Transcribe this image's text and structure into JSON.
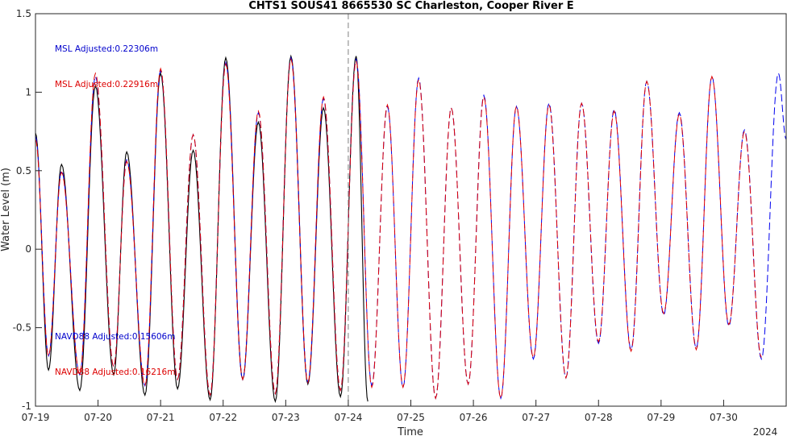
{
  "chart_data": {
    "type": "line",
    "title": "CHTS1 SOUS41 8665530 SC Charleston, Cooper River E",
    "xlabel": "Time",
    "ylabel": "Water Level (m)",
    "year_label": "2024",
    "xlim": [
      "2024-07-19T00:00",
      "2024-07-31T00:00"
    ],
    "ylim": [
      -1,
      1.5
    ],
    "x_ticks": [
      "07-19",
      "07-20",
      "07-21",
      "07-22",
      "07-23",
      "07-24",
      "07-25",
      "07-26",
      "07-27",
      "07-28",
      "07-29",
      "07-30"
    ],
    "y_ticks": [
      "-1",
      "-0.5",
      "0",
      "0.5",
      "1",
      "1.5"
    ],
    "y_tick_values": [
      -1,
      -0.5,
      0,
      0.5,
      1,
      1.5
    ],
    "grid": false,
    "legend": "none",
    "now_marker": "2024-07-24T00:00",
    "annotations": [
      {
        "text": "MSL Adjusted:0.22306m",
        "color": "#0000cc"
      },
      {
        "text": "MSL Adjusted:0.22916m",
        "color": "#dd0000"
      },
      {
        "text": "NAVD88 Adjusted:0.15606m",
        "color": "#0000cc"
      },
      {
        "text": "NAVD88 Adjusted:0.16216m",
        "color": "#dd0000"
      }
    ],
    "colors": {
      "observed": "#000000",
      "blue": "#0000ee",
      "red": "#e00000",
      "marker": "#808080"
    },
    "observed_extrema": [
      [
        "2024-07-19T00:00",
        0.74
      ],
      [
        "2024-07-19T05:00",
        -0.77
      ],
      [
        "2024-07-19T10:00",
        0.54
      ],
      [
        "2024-07-19T17:00",
        -0.9
      ],
      [
        "2024-07-19T23:00",
        1.04
      ],
      [
        "2024-07-20T06:00",
        -0.8
      ],
      [
        "2024-07-20T11:00",
        0.62
      ],
      [
        "2024-07-20T18:00",
        -0.93
      ],
      [
        "2024-07-21T00:00",
        1.12
      ],
      [
        "2024-07-21T06:30",
        -0.89
      ],
      [
        "2024-07-21T12:30",
        0.63
      ],
      [
        "2024-07-21T19:00",
        -0.96
      ],
      [
        "2024-07-22T01:00",
        1.22
      ],
      [
        "2024-07-22T07:30",
        -0.83
      ],
      [
        "2024-07-22T13:30",
        0.81
      ],
      [
        "2024-07-22T20:00",
        -0.97
      ],
      [
        "2024-07-23T02:00",
        1.23
      ],
      [
        "2024-07-23T08:30",
        -0.86
      ],
      [
        "2024-07-23T14:30",
        0.9
      ],
      [
        "2024-07-23T21:00",
        -0.94
      ],
      [
        "2024-07-24T03:00",
        1.23
      ],
      [
        "2024-07-24T07:30",
        -0.97
      ]
    ],
    "series": [
      {
        "extrema": [
          [
            "2024-07-19T00:00",
            0.72
          ],
          [
            "2024-07-19T05:00",
            -0.68
          ],
          [
            "2024-07-19T10:00",
            0.5
          ],
          [
            "2024-07-19T17:00",
            -0.8
          ],
          [
            "2024-07-19T23:00",
            1.1
          ],
          [
            "2024-07-20T06:00",
            -0.75
          ],
          [
            "2024-07-20T11:00",
            0.57
          ],
          [
            "2024-07-20T18:00",
            -0.87
          ],
          [
            "2024-07-21T00:00",
            1.14
          ],
          [
            "2024-07-21T06:30",
            -0.83
          ],
          [
            "2024-07-21T12:30",
            0.73
          ],
          [
            "2024-07-21T19:00",
            -0.93
          ],
          [
            "2024-07-22T01:00",
            1.19
          ],
          [
            "2024-07-22T07:30",
            -0.83
          ],
          [
            "2024-07-22T13:30",
            0.87
          ],
          [
            "2024-07-22T20:00",
            -0.92
          ],
          [
            "2024-07-23T02:00",
            1.22
          ],
          [
            "2024-07-23T08:30",
            -0.85
          ],
          [
            "2024-07-23T14:30",
            0.96
          ],
          [
            "2024-07-23T21:00",
            -0.9
          ],
          [
            "2024-07-24T03:00",
            1.21
          ],
          [
            "2024-07-24T09:00",
            -0.87
          ],
          [
            "2024-07-24T15:00",
            0.91
          ],
          [
            "2024-07-24T21:00",
            -0.88
          ],
          [
            "2024-07-25T03:00",
            1.09
          ],
          [
            "2024-07-25T09:30",
            -0.95
          ],
          [
            "2024-07-25T15:30",
            0.9
          ],
          [
            "2024-07-25T22:00",
            -0.86
          ],
          [
            "2024-07-26T04:00",
            0.98
          ],
          [
            "2024-07-26T10:30",
            -0.95
          ],
          [
            "2024-07-26T16:30",
            0.91
          ],
          [
            "2024-07-26T23:00",
            -0.7
          ],
          [
            "2024-07-27T05:00",
            0.93
          ],
          [
            "2024-07-27T11:30",
            -0.82
          ],
          [
            "2024-07-27T17:30",
            0.93
          ],
          [
            "2024-07-28T00:00",
            -0.6
          ],
          [
            "2024-07-28T06:00",
            0.89
          ],
          [
            "2024-07-28T12:30",
            -0.64
          ],
          [
            "2024-07-28T18:30",
            1.07
          ],
          [
            "2024-07-29T01:00",
            -0.42
          ],
          [
            "2024-07-29T07:00",
            0.87
          ],
          [
            "2024-07-29T13:30",
            -0.63
          ],
          [
            "2024-07-29T19:30",
            1.1
          ],
          [
            "2024-07-30T02:00",
            -0.49
          ],
          [
            "2024-07-30T08:00",
            0.76
          ],
          [
            "2024-07-30T14:30",
            -0.7
          ],
          [
            "2024-07-30T21:00",
            1.12
          ],
          [
            "2024-07-31T00:00",
            0.7
          ]
        ]
      },
      {
        "extrema": [
          [
            "2024-07-19T00:00",
            0.7
          ],
          [
            "2024-07-19T05:00",
            -0.68
          ],
          [
            "2024-07-19T10:00",
            0.49
          ],
          [
            "2024-07-19T17:00",
            -0.8
          ],
          [
            "2024-07-19T23:00",
            1.12
          ],
          [
            "2024-07-20T06:00",
            -0.75
          ],
          [
            "2024-07-20T11:00",
            0.56
          ],
          [
            "2024-07-20T18:00",
            -0.87
          ],
          [
            "2024-07-21T00:00",
            1.15
          ],
          [
            "2024-07-21T06:30",
            -0.83
          ],
          [
            "2024-07-21T12:30",
            0.73
          ],
          [
            "2024-07-21T19:00",
            -0.93
          ],
          [
            "2024-07-22T01:00",
            1.18
          ],
          [
            "2024-07-22T07:30",
            -0.83
          ],
          [
            "2024-07-22T13:30",
            0.88
          ],
          [
            "2024-07-22T20:00",
            -0.92
          ],
          [
            "2024-07-23T02:00",
            1.21
          ],
          [
            "2024-07-23T08:30",
            -0.85
          ],
          [
            "2024-07-23T14:30",
            0.97
          ],
          [
            "2024-07-23T21:00",
            -0.9
          ],
          [
            "2024-07-24T03:00",
            1.2
          ],
          [
            "2024-07-24T09:00",
            -0.88
          ],
          [
            "2024-07-24T15:00",
            0.92
          ],
          [
            "2024-07-24T21:00",
            -0.88
          ],
          [
            "2024-07-25T03:00",
            1.08
          ],
          [
            "2024-07-25T09:30",
            -0.95
          ],
          [
            "2024-07-25T15:30",
            0.9
          ],
          [
            "2024-07-25T22:00",
            -0.86
          ],
          [
            "2024-07-26T04:00",
            0.97
          ],
          [
            "2024-07-26T10:30",
            -0.95
          ],
          [
            "2024-07-26T16:30",
            0.91
          ],
          [
            "2024-07-26T23:00",
            -0.69
          ],
          [
            "2024-07-27T05:00",
            0.92
          ],
          [
            "2024-07-27T11:30",
            -0.82
          ],
          [
            "2024-07-27T17:30",
            0.93
          ],
          [
            "2024-07-28T00:00",
            -0.59
          ],
          [
            "2024-07-28T06:00",
            0.88
          ],
          [
            "2024-07-28T12:30",
            -0.65
          ],
          [
            "2024-07-28T18:30",
            1.07
          ],
          [
            "2024-07-29T01:00",
            -0.41
          ],
          [
            "2024-07-29T07:00",
            0.86
          ],
          [
            "2024-07-29T13:30",
            -0.64
          ],
          [
            "2024-07-29T19:30",
            1.1
          ],
          [
            "2024-07-30T02:00",
            -0.48
          ],
          [
            "2024-07-30T08:00",
            0.75
          ],
          [
            "2024-07-30T14:30",
            -0.69
          ]
        ]
      }
    ]
  }
}
